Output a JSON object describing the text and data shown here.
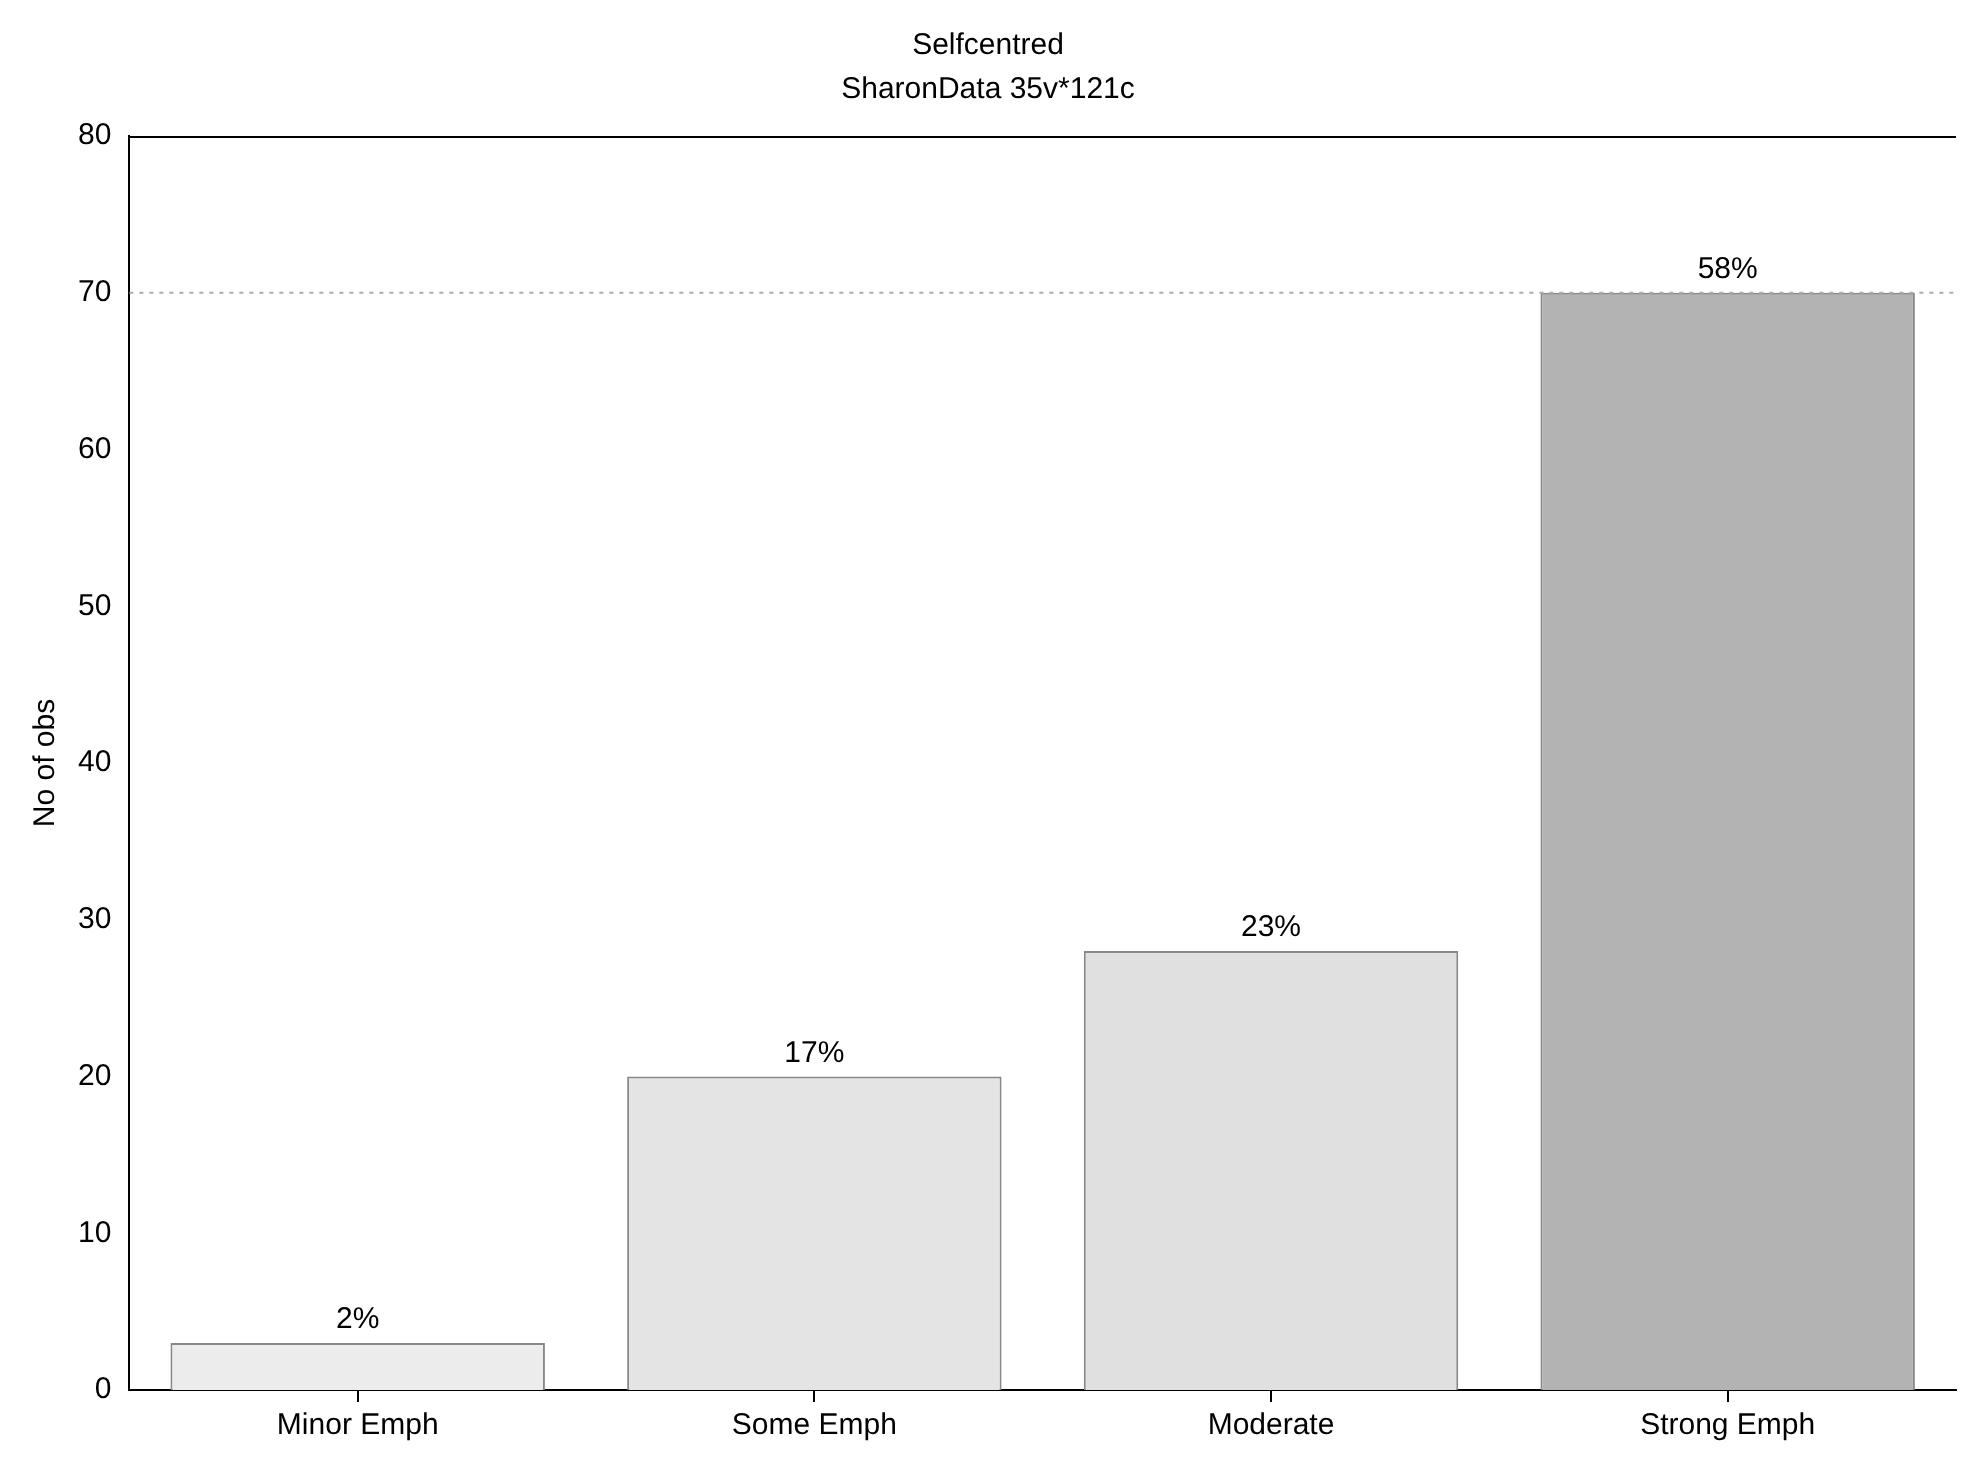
{
  "chart_data": {
    "type": "bar",
    "title": "Selfcentred",
    "subtitle": "SharonData 35v*121c",
    "ylabel": "No of obs",
    "categories": [
      "Minor Emph",
      "Some Emph",
      "Moderate",
      "Strong Emph"
    ],
    "values": [
      3,
      20,
      28,
      70
    ],
    "annotations": [
      {
        "text": "2%",
        "x": "Minor Emph",
        "y": 3
      },
      {
        "text": "17%",
        "x": "Some Emph",
        "y": 20
      },
      {
        "text": "23%",
        "x": "Moderate",
        "y": 28
      },
      {
        "text": "58%",
        "x": "Strong Emph",
        "y": 70
      }
    ],
    "colors": [
      "#ececec",
      "#e4e4e4",
      "#e0e0e0",
      "#b3b3b3"
    ],
    "ylim": [
      0,
      80
    ],
    "yticks": [
      0,
      10,
      20,
      30,
      40,
      50,
      60,
      70,
      80
    ],
    "grid": false,
    "legend": false,
    "ref_lines": [
      {
        "axis": "y",
        "value": 70,
        "color": "#aaaaaa",
        "line_style": "dotted"
      }
    ]
  }
}
